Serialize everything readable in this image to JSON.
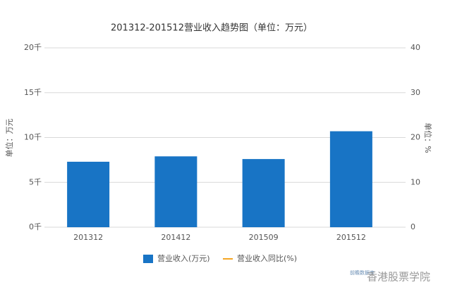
{
  "chart_data": {
    "type": "bar",
    "title": "201312-201512营业收入趋势图（单位：万元）",
    "y_label": "单位：万元",
    "y2_label": "单位：%",
    "categories": [
      "201312",
      "201412",
      "201509",
      "201512"
    ],
    "series": [
      {
        "name": "营业收入(万元)",
        "color": "#1874c5",
        "values": [
          7300,
          7900,
          7600,
          10700
        ]
      },
      {
        "name": "营业收入同比(%)",
        "color": "#f5a623",
        "axis": "y2",
        "type": "line",
        "values": [
          null,
          null,
          null,
          null
        ]
      }
    ],
    "ylim": [
      0,
      20000
    ],
    "yticks": [
      {
        "value": 0,
        "label": "0千"
      },
      {
        "value": 5000,
        "label": "5千"
      },
      {
        "value": 10000,
        "label": "10千"
      },
      {
        "value": 15000,
        "label": "15千"
      },
      {
        "value": 20000,
        "label": "20千"
      }
    ],
    "y2lim": [
      0,
      40
    ],
    "y2ticks": [
      0,
      10,
      20,
      30,
      40
    ],
    "grid": true,
    "legend": "bottom",
    "watermark": [
      "前瞻数据库",
      "香港股票学院"
    ]
  }
}
